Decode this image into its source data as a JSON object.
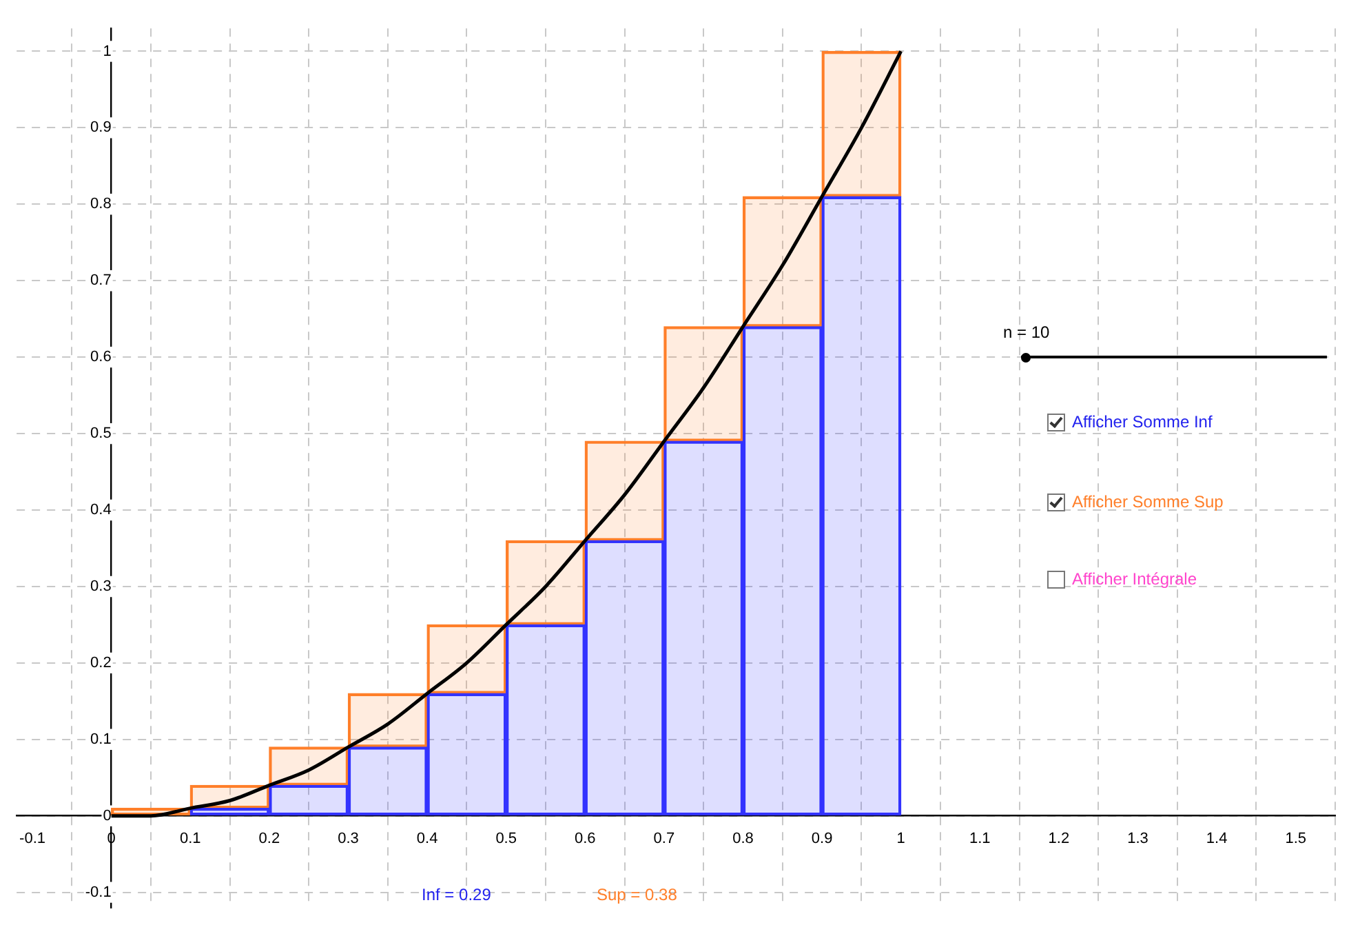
{
  "chart_data": {
    "type": "bar",
    "xlim": [
      -0.12,
      1.55
    ],
    "ylim": [
      -0.12,
      1.03
    ],
    "xticks": [
      -0.1,
      0,
      0.1,
      0.2,
      0.3,
      0.4,
      0.5,
      0.6,
      0.7,
      0.8,
      0.9,
      1,
      1.1,
      1.2,
      1.3,
      1.4,
      1.5
    ],
    "yticks": [
      -0.1,
      0,
      0.1,
      0.2,
      0.3,
      0.4,
      0.5,
      0.6,
      0.7,
      0.8,
      0.9,
      1
    ],
    "grid": true,
    "legend": false,
    "stacked": true,
    "series": [
      {
        "color": "#3333ff",
        "x": [
          0.05,
          0.15,
          0.25,
          0.35,
          0.45,
          0.55,
          0.65,
          0.75,
          0.85,
          0.95
        ],
        "values": [
          0,
          0.01,
          0.04,
          0.09,
          0.16,
          0.25,
          0.36,
          0.49,
          0.64,
          0.81
        ]
      },
      {
        "color": "#ff7f2a",
        "x": [
          0.05,
          0.15,
          0.25,
          0.35,
          0.45,
          0.55,
          0.65,
          0.75,
          0.85,
          0.95
        ],
        "values": [
          0.01,
          0.03,
          0.05,
          0.07,
          0.09,
          0.11,
          0.13,
          0.15,
          0.17,
          0.19
        ]
      },
      {
        "type": "line",
        "color": "#000000",
        "marker": "none",
        "x": [
          0,
          0.05,
          0.1,
          0.15,
          0.2,
          0.25,
          0.3,
          0.35,
          0.4,
          0.45,
          0.5,
          0.55,
          0.6,
          0.65,
          0.7,
          0.75,
          0.8,
          0.85,
          0.9,
          0.95,
          1
        ],
        "values": [
          0,
          0,
          0.01,
          0.02,
          0.04,
          0.06,
          0.09,
          0.12,
          0.16,
          0.2,
          0.25,
          0.3,
          0.36,
          0.42,
          0.49,
          0.56,
          0.64,
          0.72,
          0.81,
          0.9,
          1
        ]
      }
    ],
    "annotations": [
      "n = 10",
      "Afficher Somme Inf",
      "Afficher Somme Sup",
      "Afficher Intégrale",
      "Inf = 0.29",
      "Sup = 0.38"
    ]
  }
}
